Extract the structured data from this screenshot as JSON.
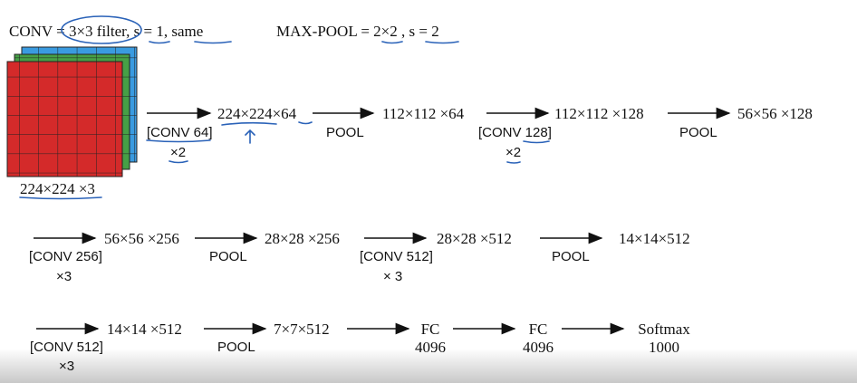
{
  "header": {
    "conv": "CONV = 3×3 filter, s = 1, same",
    "pool": "MAX-POOL = 2×2 , s = 2"
  },
  "input": {
    "label": "224×224 ×3"
  },
  "rows": [
    {
      "nodes": [
        "224×224×64",
        "112×112 ×64",
        "112×112 ×128",
        "56×56 ×128"
      ],
      "edges": [
        {
          "label": "[CONV 64]",
          "repeat": "×2"
        },
        {
          "label": "POOL"
        },
        {
          "label": "[CONV 128]",
          "repeat": "×2"
        },
        {
          "label": "POOL"
        }
      ]
    },
    {
      "nodes": [
        "56×56 ×256",
        "28×28 ×256",
        "28×28 ×512",
        "14×14×512"
      ],
      "edges": [
        {
          "label": "[CONV 256]",
          "repeat": "×3"
        },
        {
          "label": "POOL"
        },
        {
          "label": "[CONV 512]",
          "repeat": "× 3"
        },
        {
          "label": "POOL"
        }
      ]
    },
    {
      "nodes": [
        "14×14 ×512",
        "7×7×512",
        "FC",
        "4096",
        "FC",
        "4096",
        "Softmax",
        "1000"
      ],
      "edges": [
        {
          "label": "[CONV 512]",
          "repeat": "×3"
        },
        {
          "label": "POOL"
        }
      ]
    }
  ]
}
